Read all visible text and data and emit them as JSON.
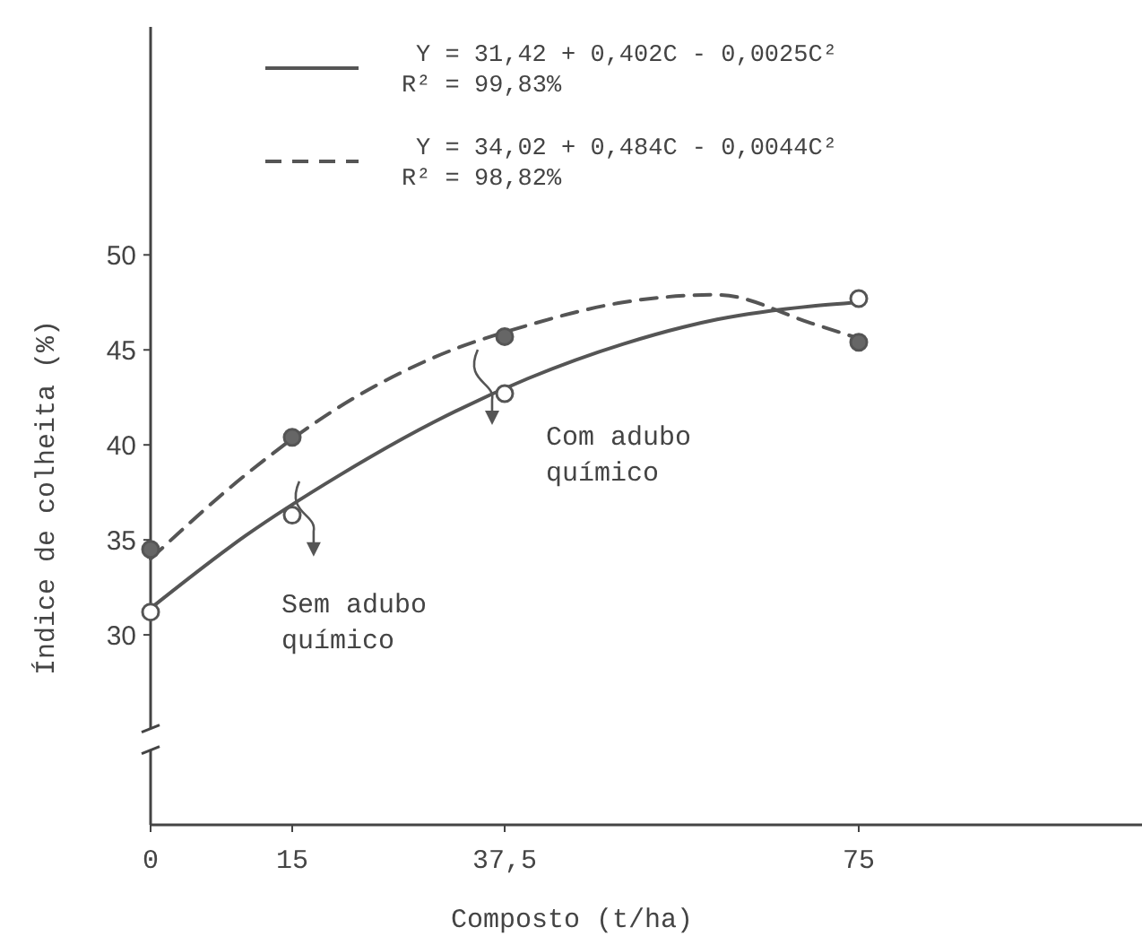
{
  "chart_data": {
    "type": "line",
    "xlabel": "Composto (t/ha)",
    "ylabel": "Índice de colheita (%)",
    "xlim": [
      0,
      105
    ],
    "xticks": [
      0,
      15,
      {
        "value": 37.5,
        "label": "37,5"
      },
      75
    ],
    "ylim": [
      20,
      62
    ],
    "yticks": [
      30,
      35,
      40,
      45,
      50
    ],
    "grid": false,
    "legend": "top",
    "series": [
      {
        "name": "Y = 31,42 + 0,402C - 0,0025C²",
        "line_style": "solid",
        "color": "#555555",
        "x": [
          0,
          10,
          20,
          30,
          40,
          50,
          60,
          70,
          75
        ],
        "values": [
          31.4,
          35.2,
          38.4,
          41.2,
          43.5,
          45.3,
          46.6,
          47.3,
          47.5
        ]
      },
      {
        "name": "Y = 34,02 + 0,484C - 0,0044C²",
        "line_style": "dashed",
        "color": "#555555",
        "x": [
          0,
          10,
          20,
          30,
          40,
          50,
          60,
          70,
          75
        ],
        "values": [
          34.0,
          38.4,
          42.0,
          44.6,
          46.3,
          47.5,
          47.9,
          46.4,
          45.6
        ]
      },
      {
        "type": "scatter",
        "marker": "circle",
        "color": "#ffffff",
        "x": [
          0,
          15,
          37.5,
          75
        ],
        "values": [
          31.2,
          36.3,
          42.7,
          47.7
        ]
      },
      {
        "type": "scatter",
        "marker": "circle",
        "color": "#666666",
        "x": [
          0,
          15,
          37.5,
          75
        ],
        "values": [
          34.5,
          40.4,
          45.7,
          45.4
        ]
      }
    ],
    "annotations": [
      "R² = 99,83%",
      "R² = 98,82%",
      "Com adubo químico",
      "Sem adubo químico"
    ]
  }
}
